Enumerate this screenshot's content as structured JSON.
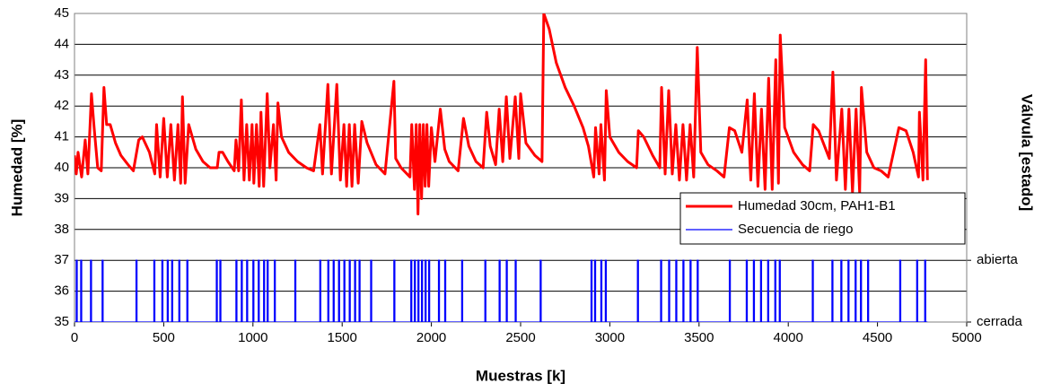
{
  "chart_data": {
    "type": "line",
    "xlabel": "Muestras [k]",
    "ylabel": "Humedad [%]",
    "y2label": "Válvula [estado]",
    "xlim": [
      0,
      5000
    ],
    "xticks": [
      0,
      500,
      1000,
      1500,
      2000,
      2500,
      3000,
      3500,
      4000,
      4500,
      5000
    ],
    "ylim": [
      35,
      45
    ],
    "yticks": [
      35,
      36,
      37,
      38,
      39,
      40,
      41,
      42,
      43,
      44,
      45
    ],
    "y2lim": [
      0,
      5
    ],
    "y2ticks": [
      {
        "value": 0,
        "label": "cerrada"
      },
      {
        "value": 1,
        "label": "abierta"
      }
    ],
    "grid": true,
    "legend": "right",
    "series": [
      {
        "name": "Humedad 30cm, PAH1-B1",
        "color": "#ff0000",
        "x": [
          0,
          10,
          20,
          40,
          60,
          75,
          95,
          110,
          130,
          150,
          165,
          180,
          200,
          230,
          260,
          300,
          330,
          360,
          380,
          420,
          450,
          460,
          480,
          500,
          520,
          540,
          560,
          580,
          595,
          605,
          620,
          640,
          680,
          720,
          760,
          800,
          810,
          830,
          860,
          895,
          905,
          920,
          935,
          950,
          965,
          980,
          995,
          1005,
          1020,
          1035,
          1045,
          1060,
          1080,
          1095,
          1115,
          1130,
          1140,
          1160,
          1200,
          1250,
          1300,
          1340,
          1375,
          1390,
          1420,
          1440,
          1470,
          1490,
          1510,
          1525,
          1540,
          1555,
          1570,
          1590,
          1610,
          1640,
          1690,
          1740,
          1790,
          1800,
          1830,
          1880,
          1890,
          1905,
          1915,
          1925,
          1935,
          1945,
          1955,
          1965,
          1975,
          1985,
          2000,
          2020,
          2050,
          2075,
          2100,
          2150,
          2180,
          2210,
          2250,
          2290,
          2310,
          2330,
          2360,
          2380,
          2400,
          2420,
          2440,
          2470,
          2490,
          2500,
          2530,
          2580,
          2620,
          2630,
          2660,
          2700,
          2750,
          2800,
          2850,
          2880,
          2910,
          2920,
          2940,
          2950,
          2970,
          2980,
          3000,
          3050,
          3100,
          3150,
          3160,
          3190,
          3240,
          3280,
          3290,
          3310,
          3330,
          3350,
          3370,
          3390,
          3410,
          3430,
          3450,
          3470,
          3490,
          3510,
          3550,
          3600,
          3640,
          3670,
          3700,
          3740,
          3770,
          3790,
          3810,
          3830,
          3850,
          3870,
          3890,
          3910,
          3930,
          3945,
          3955,
          3980,
          4030,
          4080,
          4120,
          4140,
          4170,
          4230,
          4250,
          4270,
          4300,
          4320,
          4340,
          4360,
          4380,
          4400,
          4410,
          4440,
          4480,
          4520,
          4560,
          4620,
          4660,
          4700,
          4730,
          4735,
          4755,
          4770,
          4780
        ],
        "values": [
          40.4,
          39.8,
          40.5,
          39.7,
          40.9,
          39.8,
          42.4,
          41.3,
          40.0,
          39.9,
          42.6,
          41.4,
          41.4,
          40.8,
          40.4,
          40.1,
          39.9,
          40.9,
          41.0,
          40.5,
          39.8,
          41.4,
          39.7,
          41.6,
          39.7,
          41.4,
          39.6,
          41.4,
          39.5,
          42.3,
          39.5,
          41.4,
          40.6,
          40.2,
          40.0,
          40.0,
          40.5,
          40.5,
          40.2,
          39.9,
          40.9,
          39.9,
          42.2,
          39.6,
          41.4,
          39.6,
          41.4,
          39.5,
          41.4,
          39.4,
          41.8,
          39.4,
          42.4,
          40.0,
          41.4,
          39.6,
          42.1,
          41.0,
          40.5,
          40.2,
          40.0,
          39.9,
          41.4,
          39.8,
          42.7,
          39.8,
          42.7,
          39.6,
          41.4,
          39.4,
          41.4,
          39.4,
          41.4,
          39.5,
          41.5,
          40.8,
          40.1,
          39.8,
          42.8,
          40.3,
          40.0,
          39.7,
          41.4,
          39.3,
          41.4,
          38.5,
          41.4,
          39.0,
          41.4,
          39.4,
          41.4,
          39.4,
          41.3,
          40.2,
          41.9,
          40.6,
          40.2,
          39.9,
          41.6,
          40.7,
          40.2,
          40.0,
          41.8,
          40.7,
          40.1,
          41.9,
          40.2,
          42.3,
          40.3,
          42.3,
          40.3,
          42.4,
          40.8,
          40.4,
          40.2,
          45.0,
          44.5,
          43.4,
          42.6,
          42.0,
          41.3,
          40.7,
          39.7,
          41.3,
          39.8,
          41.4,
          39.6,
          42.5,
          41.0,
          40.5,
          40.2,
          40.0,
          41.2,
          41.0,
          40.4,
          40.0,
          42.6,
          39.8,
          42.5,
          39.8,
          41.4,
          39.6,
          41.4,
          39.6,
          41.4,
          39.7,
          43.9,
          40.5,
          40.1,
          39.9,
          39.7,
          41.3,
          41.2,
          40.5,
          42.2,
          39.6,
          42.4,
          39.4,
          41.9,
          39.3,
          42.9,
          39.3,
          43.5,
          39.5,
          44.3,
          41.3,
          40.5,
          40.1,
          39.9,
          41.4,
          41.2,
          40.3,
          43.1,
          39.6,
          41.9,
          39.3,
          41.9,
          39.2,
          41.9,
          39.2,
          42.6,
          40.5,
          40.0,
          39.9,
          39.7,
          41.3,
          41.2,
          40.5,
          39.7,
          41.8,
          39.6,
          43.5,
          39.6
        ]
      },
      {
        "name": "Secuencia de riego",
        "color": "#0000ff",
        "axis": "y2",
        "x": [
          0,
          10,
          10,
          15,
          15,
          35,
          35,
          40,
          40,
          90,
          90,
          95,
          95,
          155,
          155,
          160,
          160,
          345,
          345,
          350,
          350,
          445,
          445,
          450,
          450,
          490,
          490,
          495,
          495,
          520,
          520,
          525,
          525,
          545,
          545,
          550,
          550,
          585,
          585,
          590,
          590,
          630,
          630,
          635,
          635,
          795,
          795,
          800,
          800,
          815,
          815,
          820,
          820,
          905,
          905,
          910,
          910,
          935,
          935,
          940,
          940,
          965,
          965,
          970,
          970,
          1000,
          1000,
          1005,
          1005,
          1030,
          1030,
          1035,
          1035,
          1060,
          1060,
          1065,
          1065,
          1080,
          1080,
          1085,
          1085,
          1120,
          1120,
          1125,
          1125,
          1235,
          1235,
          1240,
          1240,
          1375,
          1375,
          1380,
          1380,
          1420,
          1420,
          1425,
          1425,
          1450,
          1450,
          1455,
          1455,
          1480,
          1480,
          1485,
          1485,
          1510,
          1510,
          1515,
          1515,
          1540,
          1540,
          1545,
          1545,
          1570,
          1570,
          1575,
          1575,
          1595,
          1595,
          1600,
          1600,
          1660,
          1660,
          1665,
          1665,
          1790,
          1790,
          1795,
          1795,
          1885,
          1885,
          1890,
          1890,
          1905,
          1905,
          1910,
          1910,
          1925,
          1925,
          1930,
          1930,
          1945,
          1945,
          1950,
          1950,
          1965,
          1965,
          1970,
          1970,
          1985,
          1985,
          1990,
          1990,
          2040,
          2040,
          2045,
          2045,
          2075,
          2075,
          2080,
          2080,
          2170,
          2170,
          2175,
          2175,
          2300,
          2300,
          2305,
          2305,
          2380,
          2380,
          2385,
          2385,
          2420,
          2420,
          2425,
          2425,
          2470,
          2470,
          2475,
          2475,
          2610,
          2610,
          2615,
          2615,
          2895,
          2895,
          2900,
          2900,
          2915,
          2915,
          2920,
          2920,
          2950,
          2950,
          2955,
          2955,
          2975,
          2975,
          2980,
          2980,
          3155,
          3155,
          3160,
          3160,
          3285,
          3285,
          3290,
          3290,
          3330,
          3330,
          3335,
          3335,
          3370,
          3370,
          3375,
          3375,
          3410,
          3410,
          3415,
          3415,
          3450,
          3450,
          3455,
          3455,
          3490,
          3490,
          3495,
          3495,
          3670,
          3670,
          3675,
          3675,
          3765,
          3765,
          3770,
          3770,
          3805,
          3805,
          3810,
          3810,
          3845,
          3845,
          3850,
          3850,
          3885,
          3885,
          3890,
          3890,
          3925,
          3925,
          3930,
          3930,
          3950,
          3950,
          3955,
          3955,
          4135,
          4135,
          4140,
          4140,
          4245,
          4245,
          4250,
          4250,
          4295,
          4295,
          4300,
          4300,
          4335,
          4335,
          4340,
          4340,
          4375,
          4375,
          4380,
          4380,
          4405,
          4405,
          4410,
          4410,
          4445,
          4445,
          4450,
          4450,
          4625,
          4625,
          4630,
          4630,
          4720,
          4720,
          4725,
          4725,
          4765,
          4765,
          4770,
          4770,
          4780
        ],
        "values": [
          0,
          0,
          1,
          1,
          0,
          0,
          1,
          1,
          0,
          0,
          1,
          1,
          0,
          0,
          1,
          1,
          0,
          0,
          1,
          1,
          0,
          0,
          1,
          1,
          0,
          0,
          1,
          1,
          0,
          0,
          1,
          1,
          0,
          0,
          1,
          1,
          0,
          0,
          1,
          1,
          0,
          0,
          1,
          1,
          0,
          0,
          1,
          1,
          0,
          0,
          1,
          1,
          0,
          0,
          1,
          1,
          0,
          0,
          1,
          1,
          0,
          0,
          1,
          1,
          0,
          0,
          1,
          1,
          0,
          0,
          1,
          1,
          0,
          0,
          1,
          1,
          0,
          0,
          1,
          1,
          0,
          0,
          1,
          1,
          0,
          0,
          1,
          1,
          0,
          0,
          1,
          1,
          0,
          0,
          1,
          1,
          0,
          0,
          1,
          1,
          0,
          0,
          1,
          1,
          0,
          0,
          1,
          1,
          0,
          0,
          1,
          1,
          0,
          0,
          1,
          1,
          0,
          0,
          1,
          1,
          0,
          0,
          1,
          1,
          0,
          0,
          1,
          1,
          0,
          0,
          1,
          1,
          0,
          0,
          1,
          1,
          0,
          0,
          1,
          1,
          0,
          0,
          1,
          1,
          0,
          0,
          1,
          1,
          0,
          0,
          1,
          1,
          0,
          0,
          1,
          1,
          0,
          0,
          1,
          1,
          0,
          0,
          1,
          1,
          0,
          0,
          1,
          1,
          0,
          0,
          1,
          1,
          0,
          0,
          1,
          1,
          0,
          0,
          1,
          1,
          0,
          0,
          1,
          1,
          0,
          0,
          1,
          1,
          0,
          0,
          1,
          1,
          0,
          0,
          1,
          1,
          0,
          0,
          1,
          1,
          0,
          0,
          1,
          1,
          0,
          0,
          1,
          1,
          0,
          0,
          1,
          1,
          0,
          0,
          1,
          1,
          0,
          0,
          1,
          1,
          0,
          0,
          1,
          1,
          0,
          0,
          1,
          1,
          0,
          0,
          1,
          1,
          0,
          0,
          1,
          1,
          0,
          0,
          1,
          1,
          0,
          0,
          1,
          1,
          0,
          0,
          1,
          1,
          0,
          0,
          1,
          1,
          0,
          0,
          1,
          1,
          0,
          0,
          1,
          1,
          0,
          0,
          1,
          1,
          0,
          0,
          1,
          1,
          0,
          0,
          1,
          1,
          0,
          0,
          1,
          1,
          0,
          0,
          1,
          1,
          0,
          0,
          1,
          1,
          0,
          0,
          1,
          1,
          0,
          0,
          1,
          1,
          0,
          0,
          1,
          1,
          0,
          0
        ]
      }
    ]
  }
}
